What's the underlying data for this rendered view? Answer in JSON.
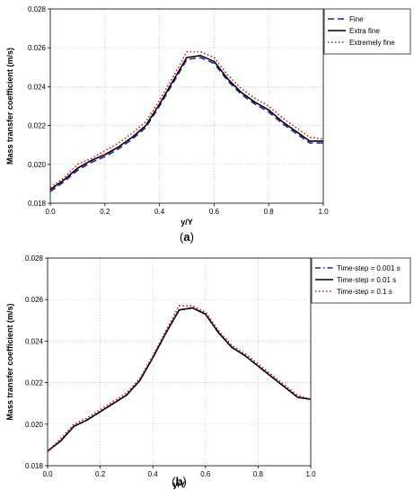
{
  "chart_data": [
    {
      "type": "line",
      "panel_label": "a",
      "xlabel": "y/Y",
      "ylabel": "Mass transfer coefficient (m/s)",
      "xlim": [
        0,
        1
      ],
      "ylim": [
        0.018,
        0.028
      ],
      "xticks": [
        "0.0",
        "0.2",
        "0.4",
        "0.6",
        "0.8",
        "1.0"
      ],
      "yticks": [
        "0.018",
        "0.020",
        "0.022",
        "0.024",
        "0.026",
        "0.028"
      ],
      "grid": true,
      "legend_position": "top-right",
      "x": [
        0.0,
        0.05,
        0.1,
        0.15,
        0.2,
        0.25,
        0.3,
        0.35,
        0.4,
        0.45,
        0.5,
        0.55,
        0.6,
        0.65,
        0.7,
        0.75,
        0.8,
        0.85,
        0.9,
        0.95,
        1.0
      ],
      "series": [
        {
          "name": "Fine",
          "color": "#1f1fb4",
          "dash": "dash",
          "values": [
            0.0186,
            0.0191,
            0.0197,
            0.0201,
            0.0204,
            0.0208,
            0.0213,
            0.0219,
            0.023,
            0.0242,
            0.0254,
            0.0255,
            0.0252,
            0.0243,
            0.0236,
            0.0231,
            0.0227,
            0.0221,
            0.0216,
            0.0211,
            0.0211
          ]
        },
        {
          "name": "Extra fine",
          "color": "#000000",
          "dash": "solid",
          "values": [
            0.0187,
            0.0192,
            0.0198,
            0.0202,
            0.0205,
            0.0209,
            0.0214,
            0.022,
            0.0231,
            0.0243,
            0.0255,
            0.0256,
            0.0253,
            0.0244,
            0.0237,
            0.0232,
            0.0228,
            0.0222,
            0.0217,
            0.0212,
            0.0212
          ]
        },
        {
          "name": "Extremely fine",
          "color": "#cc1111",
          "dash": "dot",
          "values": [
            0.0188,
            0.0193,
            0.02,
            0.0203,
            0.0207,
            0.0211,
            0.0216,
            0.0222,
            0.0233,
            0.0245,
            0.0258,
            0.0258,
            0.0255,
            0.0246,
            0.0239,
            0.0234,
            0.023,
            0.0224,
            0.0219,
            0.0214,
            0.0213
          ]
        }
      ]
    },
    {
      "type": "line",
      "panel_label": "b",
      "xlabel": "y/Y",
      "ylabel": "Mass transfer coefficient (m/s)",
      "xlim": [
        0,
        1
      ],
      "ylim": [
        0.018,
        0.028
      ],
      "xticks": [
        "0.0",
        "0.2",
        "0.4",
        "0.6",
        "0.8",
        "1.0"
      ],
      "yticks": [
        "0.018",
        "0.020",
        "0.022",
        "0.024",
        "0.026",
        "0.028"
      ],
      "grid": true,
      "legend_position": "top-right",
      "x": [
        0.0,
        0.05,
        0.1,
        0.15,
        0.2,
        0.25,
        0.3,
        0.35,
        0.4,
        0.45,
        0.5,
        0.55,
        0.6,
        0.65,
        0.7,
        0.75,
        0.8,
        0.85,
        0.9,
        0.95,
        1.0
      ],
      "series": [
        {
          "name": "Time-step = 0.001 s",
          "color": "#1f1fb4",
          "dash": "dashdot",
          "values": [
            0.0187,
            0.0192,
            0.0199,
            0.0202,
            0.0206,
            0.021,
            0.0214,
            0.0221,
            0.0232,
            0.0244,
            0.0255,
            0.0256,
            0.0253,
            0.0244,
            0.0237,
            0.0233,
            0.0228,
            0.0223,
            0.0218,
            0.0213,
            0.0212
          ]
        },
        {
          "name": "Time-step = 0.01 s",
          "color": "#000000",
          "dash": "solid",
          "values": [
            0.0187,
            0.0192,
            0.0199,
            0.0202,
            0.0206,
            0.021,
            0.0214,
            0.0221,
            0.0232,
            0.0244,
            0.0255,
            0.0256,
            0.0253,
            0.0244,
            0.0237,
            0.0233,
            0.0228,
            0.0223,
            0.0218,
            0.0213,
            0.0212
          ]
        },
        {
          "name": "Time-step = 0.1 s",
          "color": "#cc1111",
          "dash": "dot",
          "values": [
            0.0187,
            0.0193,
            0.02,
            0.0203,
            0.0207,
            0.0211,
            0.0215,
            0.0222,
            0.0233,
            0.0245,
            0.0257,
            0.0257,
            0.0254,
            0.0245,
            0.0238,
            0.0234,
            0.0229,
            0.0224,
            0.0219,
            0.0214,
            0.0212
          ]
        }
      ]
    }
  ]
}
